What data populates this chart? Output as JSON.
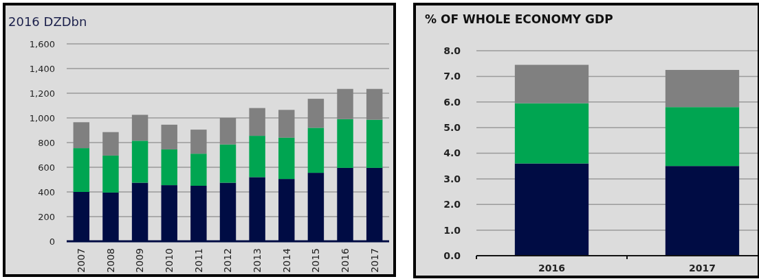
{
  "chart_data": [
    {
      "type": "bar",
      "title": "2016 DZDbn",
      "stacked": true,
      "grid": "y",
      "categories": [
        "2007",
        "2008",
        "2009",
        "2010",
        "2011",
        "2012",
        "2013",
        "2014",
        "2015",
        "2016",
        "2017"
      ],
      "ylim": [
        0,
        1600
      ],
      "yticks": [
        {
          "value": 0,
          "label": "0"
        },
        {
          "value": 200,
          "label": "200"
        },
        {
          "value": 400,
          "label": "400"
        },
        {
          "value": 600,
          "label": "600"
        },
        {
          "value": 800,
          "label": "800"
        },
        {
          "value": 1000,
          "label": "1,000"
        },
        {
          "value": 1200,
          "label": "1,200"
        },
        {
          "value": 1400,
          "label": "1,400"
        },
        {
          "value": 1600,
          "label": "1,600"
        }
      ],
      "series": [
        {
          "color": "#000c44",
          "values": [
            400,
            395,
            475,
            455,
            450,
            475,
            520,
            505,
            555,
            595,
            595
          ]
        },
        {
          "color": "#00a551",
          "values": [
            355,
            300,
            340,
            290,
            260,
            310,
            335,
            335,
            365,
            395,
            390
          ]
        },
        {
          "color": "#808080",
          "values": [
            210,
            190,
            210,
            200,
            195,
            215,
            225,
            225,
            235,
            245,
            250
          ]
        }
      ]
    },
    {
      "type": "bar",
      "title": "% OF WHOLE ECONOMY GDP",
      "stacked": true,
      "grid": "y",
      "categories": [
        "2016",
        "2017"
      ],
      "ylim": [
        0,
        8
      ],
      "yticks": [
        {
          "value": 0,
          "label": "0.0"
        },
        {
          "value": 1,
          "label": "1.0"
        },
        {
          "value": 2,
          "label": "2.0"
        },
        {
          "value": 3,
          "label": "3.0"
        },
        {
          "value": 4,
          "label": "4.0"
        },
        {
          "value": 5,
          "label": "5.0"
        },
        {
          "value": 6,
          "label": "6.0"
        },
        {
          "value": 7,
          "label": "7.0"
        },
        {
          "value": 8,
          "label": "8.0"
        }
      ],
      "series": [
        {
          "color": "#000c44",
          "values": [
            3.6,
            3.5
          ]
        },
        {
          "color": "#00a551",
          "values": [
            2.35,
            2.3
          ]
        },
        {
          "color": "#808080",
          "values": [
            1.5,
            1.45
          ]
        }
      ]
    }
  ]
}
